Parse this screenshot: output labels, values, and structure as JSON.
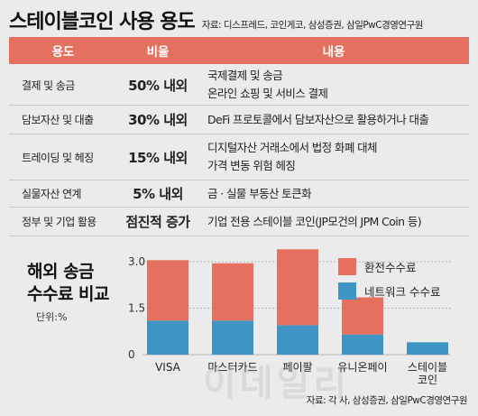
{
  "header": {
    "title": "스테이블코인 사용 용도",
    "source": "자료: 디스프레드, 코인게코, 삼성증권, 삼일PwC경영연구원"
  },
  "table": {
    "headers": [
      "용도",
      "비율",
      "내용"
    ],
    "rows": [
      {
        "use": "결제 및 송금",
        "ratio": "50% 내외",
        "lines": [
          "국제결제 및 송금",
          "온라인 쇼핑 및 서비스 결제"
        ]
      },
      {
        "use": "담보자산 및 대출",
        "ratio": "30% 내외",
        "lines": [
          "DeFi 프로토콜에서 담보자산으로 활용하거나 대출"
        ]
      },
      {
        "use": "트레이딩 및 헤징",
        "ratio": "15% 내외",
        "lines": [
          "디지털자산 거래소에서 법정 화폐 대체",
          "가격 변동 위험 헤징"
        ]
      },
      {
        "use": "실물자산 연계",
        "ratio": "5% 내외",
        "lines": [
          "금 · 실물 부동산 토큰화"
        ]
      },
      {
        "use": "정부 및 기업 활용",
        "ratio": "점진적 증가",
        "lines": [
          "기업 전용 스테이블 코인(JP모건의 JPM Coin 등)"
        ]
      }
    ]
  },
  "chart_data": {
    "type": "bar",
    "stacked": true,
    "title_lines": [
      "해외 송금",
      "수수료 비교"
    ],
    "unit": "단위:%",
    "categories": [
      "VISA",
      "마스터카드",
      "페이팔",
      "유니온페이",
      "스테이블|코인"
    ],
    "series": [
      {
        "name": "네트워크 수수료",
        "color": "#3f95c3",
        "values": [
          1.1,
          1.1,
          0.95,
          0.65,
          0.4
        ]
      },
      {
        "name": "환전수수료",
        "color": "#e5705f",
        "values": [
          1.95,
          1.85,
          2.45,
          1.2,
          0
        ]
      }
    ],
    "yticks": [
      "0",
      "1.5",
      "3.0"
    ],
    "ylim": [
      0,
      3.4
    ],
    "legend": "top-right"
  },
  "footer": {
    "source": "자료: 각 사, 삼성증권, 삼일PwC경영연구원"
  },
  "watermark": "이데일리"
}
